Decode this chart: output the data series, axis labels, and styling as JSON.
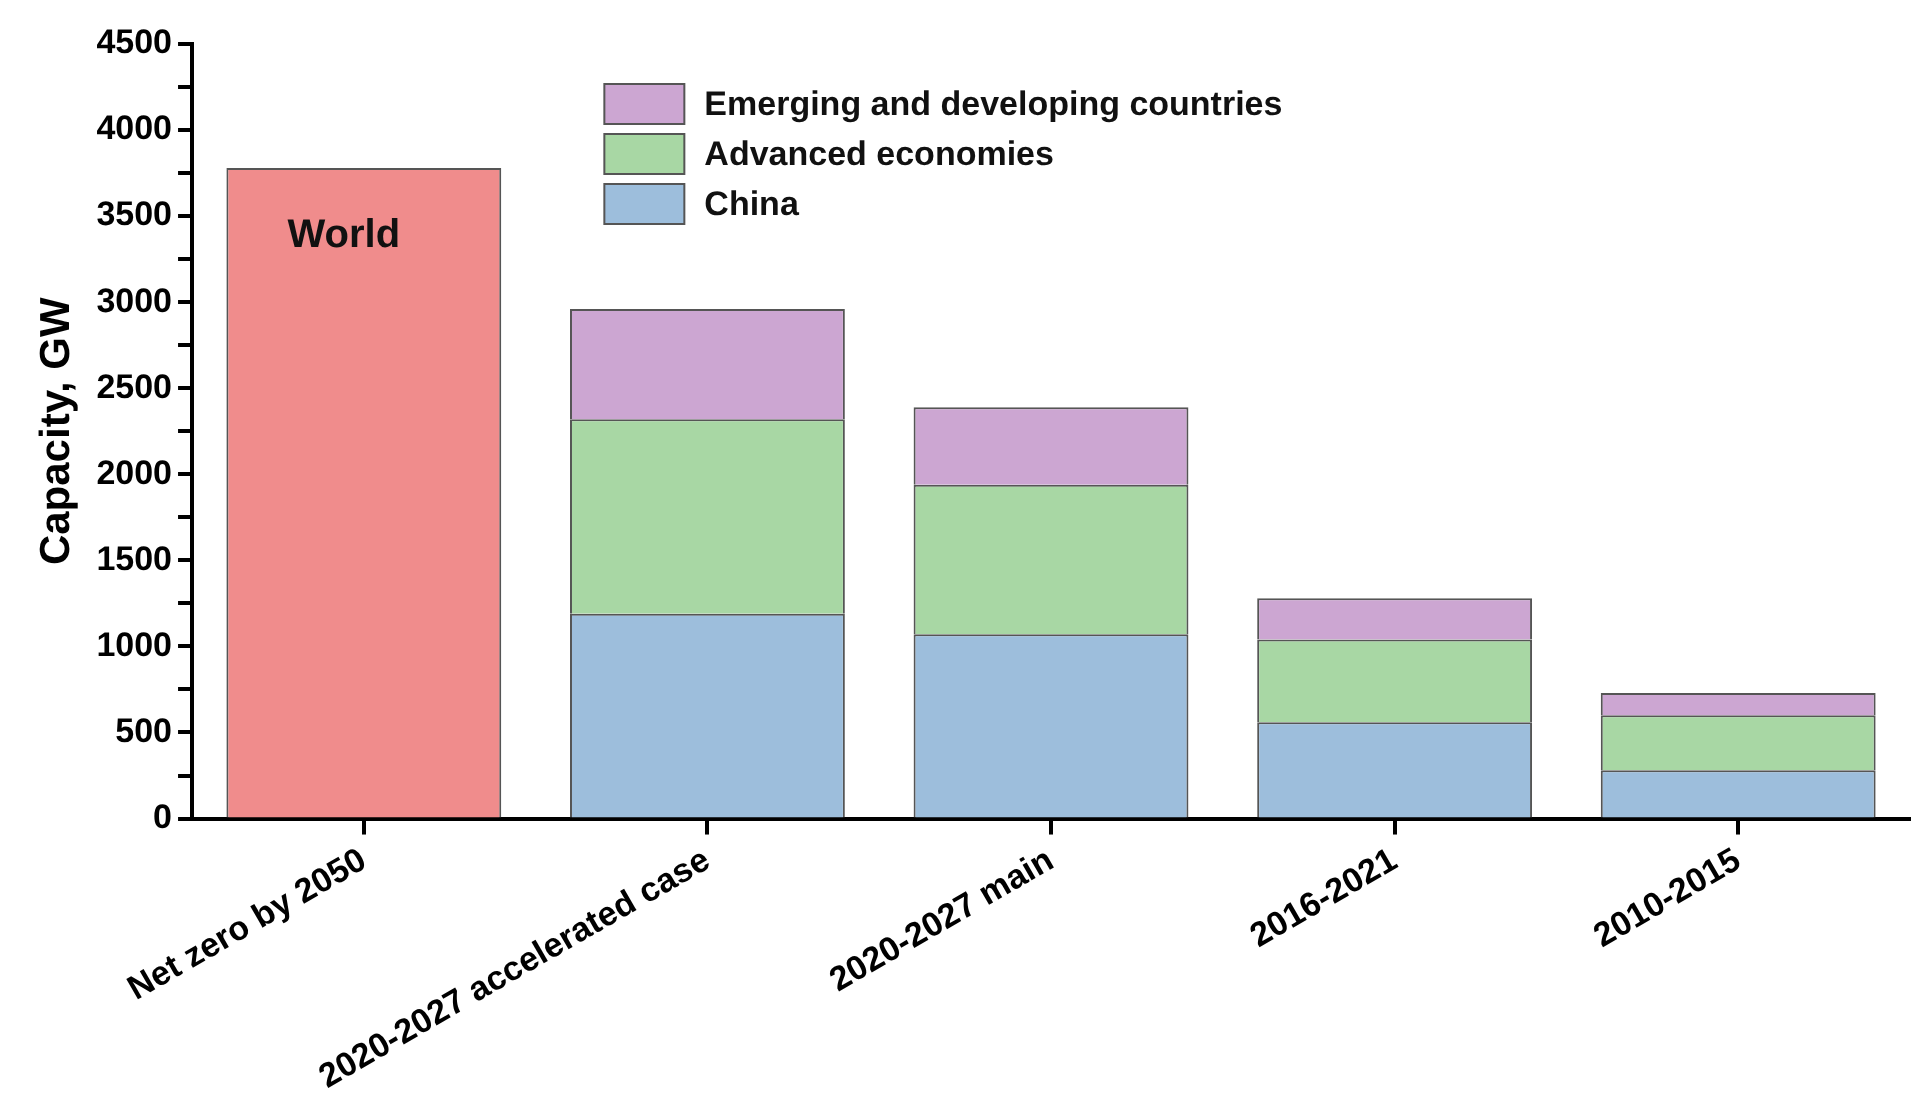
{
  "chart_data": {
    "type": "bar",
    "stacked": true,
    "ylabel": "Capacity, GW",
    "categories": [
      "Net zero by 2050",
      "2020-2027 accelerated case",
      "2020-2027 main",
      "2016-2021",
      "2010-2015"
    ],
    "series": [
      {
        "name": "World",
        "color": "#f08c8c",
        "values": [
          3780,
          null,
          null,
          null,
          null
        ]
      },
      {
        "name": "China",
        "color": "#9dbedc",
        "values": [
          null,
          1190,
          1070,
          560,
          280
        ]
      },
      {
        "name": "Advanced economies",
        "color": "#a8d7a4",
        "values": [
          null,
          1130,
          870,
          480,
          320
        ]
      },
      {
        "name": "Emerging and developing countries",
        "color": "#cca6d2",
        "values": [
          null,
          640,
          450,
          240,
          130
        ]
      }
    ],
    "ylim": [
      0,
      4500
    ],
    "yticks": [
      0,
      {
        "value": 250,
        "label": null
      },
      500,
      {
        "value": 750,
        "label": null
      },
      1000,
      {
        "value": 1250,
        "label": null
      },
      1500,
      {
        "value": 1750,
        "label": null
      },
      2000,
      {
        "value": 2250,
        "label": null
      },
      2500,
      {
        "value": 2750,
        "label": null
      },
      3000,
      {
        "value": 3250,
        "label": null
      },
      3500,
      {
        "value": 3750,
        "label": null
      },
      4000,
      {
        "value": 4250,
        "label": null
      },
      4500
    ],
    "grid": false,
    "legend": "top"
  }
}
